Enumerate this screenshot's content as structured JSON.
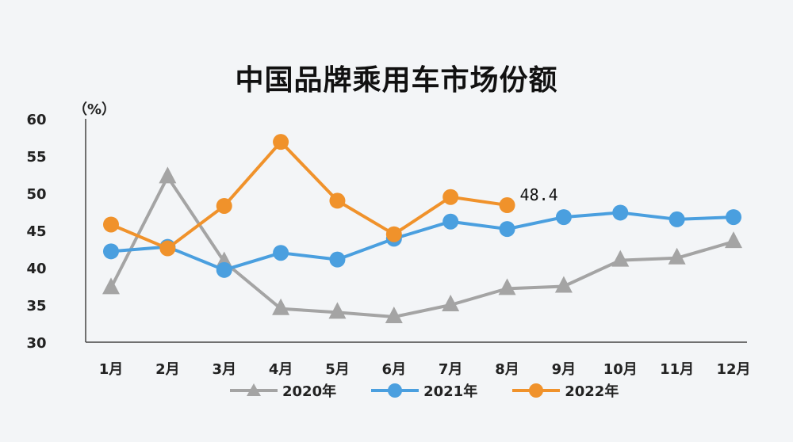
{
  "chart_data": {
    "type": "line",
    "title": "中国品牌乘用车市场份额",
    "ylabel": "（%）",
    "xlabel": "",
    "categories": [
      "1月",
      "2月",
      "3月",
      "4月",
      "5月",
      "6月",
      "7月",
      "8月",
      "9月",
      "10月",
      "11月",
      "12月"
    ],
    "y_ticks": [
      "60",
      "55",
      "50",
      "45",
      "40",
      "35",
      "30"
    ],
    "ylim": [
      30,
      60
    ],
    "grid": false,
    "legend_position": "bottom",
    "series": [
      {
        "name": "2020年",
        "color": "#a4a4a4",
        "marker": "triangle",
        "values": [
          37.3,
          52.2,
          40.8,
          34.5,
          34.0,
          33.4,
          35.0,
          37.2,
          37.5,
          41.0,
          41.3,
          43.5
        ]
      },
      {
        "name": "2021年",
        "color": "#4a9fdf",
        "marker": "circle",
        "values": [
          42.2,
          42.8,
          39.7,
          42.0,
          41.1,
          43.9,
          46.2,
          45.2,
          46.8,
          47.4,
          46.5,
          46.8
        ]
      },
      {
        "name": "2022年",
        "color": "#f0922b",
        "marker": "circle",
        "values": [
          45.8,
          42.6,
          48.3,
          56.9,
          49.0,
          44.5,
          49.5,
          48.4,
          null,
          null,
          null,
          null
        ]
      }
    ],
    "annotations": [
      {
        "text": "48.4",
        "series": "2022年",
        "category": "8月"
      }
    ]
  }
}
